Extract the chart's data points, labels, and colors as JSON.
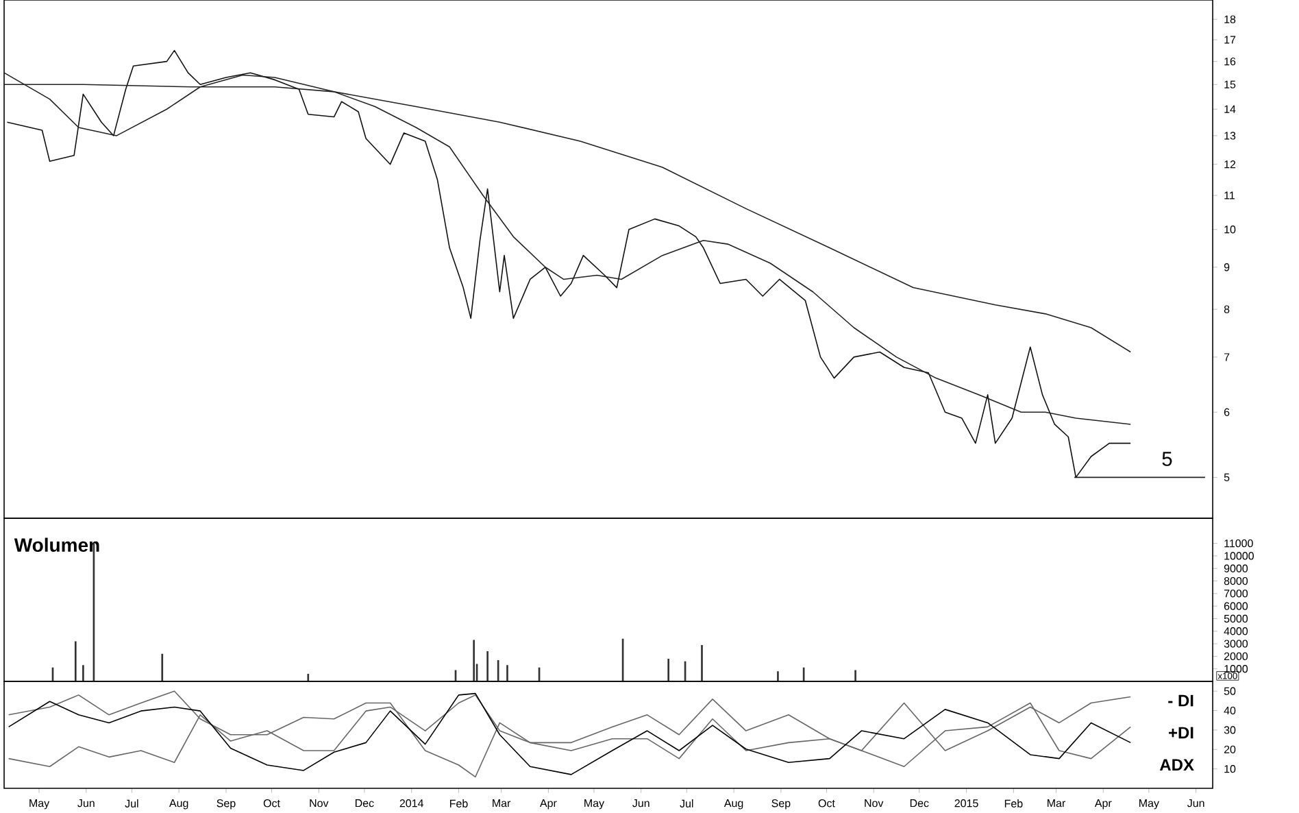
{
  "chart_data": [
    {
      "type": "line",
      "log": true,
      "xlim": [
        "2013-04-08",
        "2015-06-12"
      ],
      "ylim": [
        4.46,
        19
      ],
      "yticks": [
        5,
        6,
        7,
        8,
        9,
        10,
        11,
        12,
        13,
        14,
        15,
        16,
        17,
        18
      ],
      "tick_labels": "y",
      "annotations": [
        {
          "text": "5",
          "x": "2015-05-13",
          "y": 5.07
        }
      ],
      "series": [
        {
          "color": "#111111",
          "x": [
            "2013-04-10",
            "2013-05-03",
            "2013-05-08",
            "2013-05-24",
            "2013-05-30",
            "2013-06-11",
            "2013-06-19",
            "2013-06-27",
            "2013-07-02",
            "2013-07-24",
            "2013-07-29",
            "2013-08-07",
            "2013-08-15",
            "2013-09-01",
            "2013-09-17",
            "2013-10-03",
            "2013-10-19",
            "2013-10-25",
            "2013-11-11",
            "2013-11-16",
            "2013-11-27",
            "2013-12-02",
            "2013-12-18",
            "2013-12-27",
            "2014-01-10",
            "2014-01-18",
            "2014-01-26",
            "2014-02-04",
            "2014-02-09",
            "2014-02-15",
            "2014-02-20",
            "2014-02-28",
            "2014-03-03",
            "2014-03-09",
            "2014-03-20",
            "2014-03-30",
            "2014-04-09",
            "2014-04-16",
            "2014-04-24",
            "2014-05-08",
            "2014-05-16",
            "2014-05-24",
            "2014-06-10",
            "2014-06-26",
            "2014-07-07",
            "2014-07-12",
            "2014-07-23",
            "2014-08-09",
            "2014-08-20",
            "2014-08-31",
            "2014-09-17",
            "2014-09-27",
            "2014-10-06",
            "2014-10-19",
            "2014-11-05",
            "2014-11-21",
            "2014-12-07",
            "2014-12-18",
            "2014-12-29",
            "2015-01-07",
            "2015-01-15",
            "2015-01-20",
            "2015-01-31",
            "2015-02-12",
            "2015-02-20",
            "2015-02-28",
            "2015-03-09",
            "2015-03-14",
            "2015-03-24",
            "2015-04-05",
            "2015-04-19"
          ],
          "values": [
            13.5,
            13.2,
            12.1,
            12.3,
            14.6,
            13.5,
            13.0,
            14.8,
            15.8,
            16.0,
            16.5,
            15.5,
            15.0,
            15.3,
            15.5,
            15.2,
            14.8,
            13.8,
            13.7,
            14.3,
            13.9,
            12.9,
            12.0,
            13.1,
            12.8,
            11.5,
            9.5,
            8.5,
            7.8,
            9.7,
            11.2,
            8.4,
            9.3,
            7.8,
            8.7,
            9.0,
            8.3,
            8.6,
            9.3,
            8.8,
            8.5,
            10.0,
            10.3,
            10.1,
            9.8,
            9.5,
            8.6,
            8.7,
            8.3,
            8.7,
            8.2,
            7.0,
            6.6,
            7.0,
            7.1,
            6.8,
            6.7,
            6.0,
            5.9,
            5.5,
            6.3,
            5.5,
            5.9,
            7.2,
            6.3,
            5.8,
            5.6,
            5.0,
            5.3,
            5.5,
            5.5
          ]
        },
        {
          "color": "#222222",
          "x": [
            "2013-04-08",
            "2013-05-08",
            "2013-05-27",
            "2013-06-21",
            "2013-07-24",
            "2013-08-15",
            "2013-09-12",
            "2013-10-03",
            "2013-11-11",
            "2013-12-08",
            "2014-01-04",
            "2014-01-26",
            "2014-02-17",
            "2014-03-09",
            "2014-03-30",
            "2014-04-11",
            "2014-05-03",
            "2014-05-19",
            "2014-06-15",
            "2014-07-12",
            "2014-07-28",
            "2014-08-25",
            "2014-09-22",
            "2014-10-19",
            "2014-11-16",
            "2014-12-12",
            "2015-01-09",
            "2015-02-06",
            "2015-02-22",
            "2015-03-14",
            "2015-04-19"
          ],
          "values": [
            15.5,
            14.4,
            13.3,
            13.0,
            14.0,
            14.9,
            15.4,
            15.3,
            14.7,
            14.1,
            13.3,
            12.6,
            11.0,
            9.8,
            9.0,
            8.7,
            8.8,
            8.7,
            9.3,
            9.7,
            9.6,
            9.1,
            8.4,
            7.6,
            7.0,
            6.6,
            6.3,
            6.0,
            6.0,
            5.9,
            5.8
          ]
        },
        {
          "color": "#222222",
          "x": [
            "2013-04-08",
            "2013-05-30",
            "2013-08-09",
            "2013-10-03",
            "2013-11-11",
            "2014-01-04",
            "2014-02-28",
            "2014-04-22",
            "2014-06-15",
            "2014-08-09",
            "2014-10-03",
            "2014-11-27",
            "2015-01-20",
            "2015-02-22",
            "2015-03-24",
            "2015-04-19"
          ],
          "values": [
            15.0,
            15.0,
            14.9,
            14.9,
            14.7,
            14.1,
            13.5,
            12.8,
            11.9,
            10.6,
            9.5,
            8.5,
            8.1,
            7.9,
            7.6,
            7.1
          ]
        },
        {
          "color": "#222222",
          "x": [
            "2015-03-13",
            "2015-06-07"
          ],
          "values": [
            5,
            5
          ]
        }
      ]
    },
    {
      "type": "bar",
      "title": "Wolumen",
      "xlim": [
        "2013-04-08",
        "2015-06-12"
      ],
      "ylim": [
        0,
        13000
      ],
      "yticks": [
        1000,
        2000,
        3000,
        4000,
        5000,
        6000,
        7000,
        8000,
        9000,
        10000,
        11000
      ],
      "tick_labels": "y",
      "color": "#333333",
      "annotations": [
        "x100"
      ],
      "x": [
        "2013-05-10",
        "2013-05-25",
        "2013-05-30",
        "2013-06-06",
        "2013-07-21",
        "2013-10-25",
        "2014-01-30",
        "2014-02-11",
        "2014-02-13",
        "2014-02-20",
        "2014-02-27",
        "2014-03-05",
        "2014-03-26",
        "2014-05-20",
        "2014-06-19",
        "2014-06-30",
        "2014-07-11",
        "2014-08-30",
        "2014-09-16",
        "2014-10-20"
      ],
      "values": [
        1100,
        3200,
        1300,
        11000,
        2200,
        600,
        900,
        3300,
        1400,
        2400,
        1700,
        1300,
        1100,
        3400,
        1800,
        1600,
        2900,
        800,
        1100,
        900
      ]
    },
    {
      "type": "line",
      "xlim": [
        "2013-04-08",
        "2015-06-12"
      ],
      "ylim": [
        0,
        55
      ],
      "yticks": [
        10,
        20,
        30,
        40,
        50
      ],
      "xticks": [
        {
          "value": "2013-05-01",
          "label": "May"
        },
        {
          "value": "2013-06-01",
          "label": "Jun"
        },
        {
          "value": "2013-07-01",
          "label": "Jul"
        },
        {
          "value": "2013-08-01",
          "label": "Aug"
        },
        {
          "value": "2013-09-01",
          "label": "Sep"
        },
        {
          "value": "2013-10-01",
          "label": "Oct"
        },
        {
          "value": "2013-11-01",
          "label": "Nov"
        },
        {
          "value": "2013-12-01",
          "label": "Dec"
        },
        {
          "value": "2014-01-01",
          "label": "2014"
        },
        {
          "value": "2014-02-01",
          "label": "Feb"
        },
        {
          "value": "2014-03-01",
          "label": "Mar"
        },
        {
          "value": "2014-04-01",
          "label": "Apr"
        },
        {
          "value": "2014-05-01",
          "label": "May"
        },
        {
          "value": "2014-06-01",
          "label": "Jun"
        },
        {
          "value": "2014-07-01",
          "label": "Jul"
        },
        {
          "value": "2014-08-01",
          "label": "Aug"
        },
        {
          "value": "2014-09-01",
          "label": "Sep"
        },
        {
          "value": "2014-10-01",
          "label": "Oct"
        },
        {
          "value": "2014-11-01",
          "label": "Nov"
        },
        {
          "value": "2014-12-01",
          "label": "Dec"
        },
        {
          "value": "2015-01-01",
          "label": "2015"
        },
        {
          "value": "2015-02-01",
          "label": "Feb"
        },
        {
          "value": "2015-03-01",
          "label": "Mar"
        },
        {
          "value": "2015-04-01",
          "label": "Apr"
        },
        {
          "value": "2015-05-01",
          "label": "May"
        },
        {
          "value": "2015-06-01",
          "label": "Jun"
        }
      ],
      "x": [
        "2013-04-11",
        "2013-05-08",
        "2013-05-27",
        "2013-06-16",
        "2013-07-07",
        "2013-07-29",
        "2013-08-15",
        "2013-09-04",
        "2013-09-28",
        "2013-10-22",
        "2013-11-11",
        "2013-12-02",
        "2013-12-18",
        "2014-01-10",
        "2014-02-01",
        "2014-02-12",
        "2014-02-28",
        "2014-03-20",
        "2014-04-16",
        "2014-05-13",
        "2014-06-05",
        "2014-06-26",
        "2014-07-18",
        "2014-08-09",
        "2014-09-06",
        "2014-10-03",
        "2014-10-24",
        "2014-11-21",
        "2014-12-18",
        "2015-01-15",
        "2015-02-12",
        "2015-03-03",
        "2015-03-24",
        "2015-04-19"
      ],
      "series": [
        {
          "name": "- DI",
          "color": "#666666",
          "values": [
            37.8,
            41.8,
            48,
            37.8,
            43.9,
            50,
            35.7,
            27.6,
            27.6,
            36.5,
            35.7,
            43.9,
            43.9,
            19.4,
            12,
            5.9,
            33.7,
            23.5,
            23.5,
            31.6,
            37.8,
            27.6,
            45.9,
            29.6,
            37.8,
            25.5,
            19.4,
            43.9,
            19.4,
            29.6,
            41.8,
            33.7,
            43.9,
            47.1
          ]
        },
        {
          "name": "+DI",
          "color": "#666666",
          "values": [
            15.3,
            11.2,
            21.4,
            16.1,
            19.4,
            13.3,
            37.8,
            24.3,
            29.6,
            19.4,
            19.4,
            39.8,
            41.8,
            29.6,
            43.9,
            48,
            29.6,
            23.5,
            19.4,
            25.5,
            25.5,
            15.3,
            35.7,
            19.4,
            23.5,
            25.5,
            19.4,
            11.2,
            29.6,
            31.6,
            43.9,
            19.4,
            15.3,
            31.6
          ]
        },
        {
          "name": "ADX",
          "color": "#000000",
          "values": [
            31.6,
            44.7,
            37.8,
            33.7,
            39.8,
            41.8,
            39.8,
            20.6,
            12.0,
            9.2,
            18.6,
            23.5,
            39.8,
            22.7,
            48,
            48.8,
            27.6,
            11.2,
            7.1,
            19.4,
            29.6,
            19.4,
            32.4,
            20.2,
            13.3,
            15.3,
            29.6,
            25.5,
            40.6,
            33.7,
            17.3,
            15.3,
            33.7,
            23.5
          ]
        }
      ]
    }
  ]
}
